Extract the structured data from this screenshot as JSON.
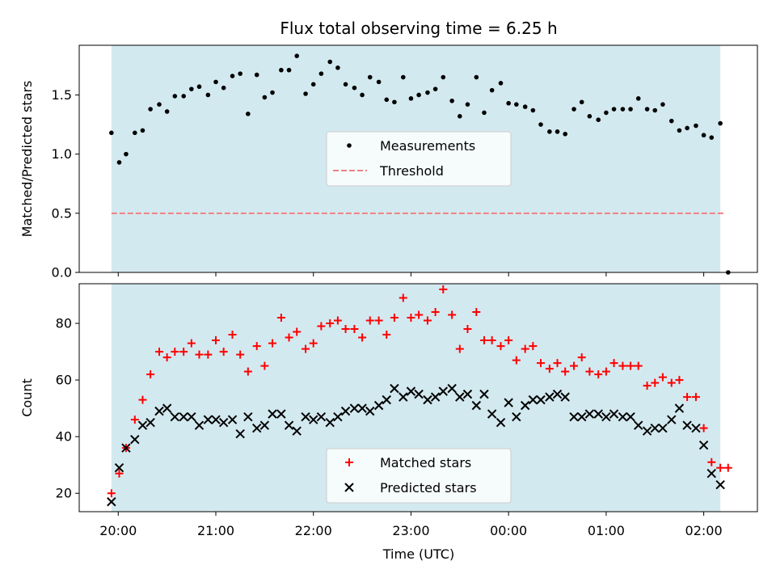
{
  "chart_data": {
    "title": "Flux total observing time = 6.25 h",
    "xlabel": "Time (UTC)",
    "x_tick_labels": [
      "20:00",
      "21:00",
      "22:00",
      "23:00",
      "00:00",
      "01:00",
      "02:00"
    ],
    "x_tick_hours": [
      20,
      21,
      22,
      23,
      24,
      25,
      26
    ],
    "xlim": [
      19.6,
      26.55
    ],
    "shaded_span": [
      19.93,
      26.17
    ],
    "shade_color": "#d3e9f0",
    "panels": [
      {
        "type": "scatter",
        "ylabel": "Matched/Predicted stars",
        "ylim": [
          0,
          1.92
        ],
        "y_ticks": [
          0.0,
          0.5,
          1.0,
          1.5
        ],
        "y_tick_labels": [
          "0.0",
          "0.5",
          "1.0",
          "1.5"
        ],
        "legend_position": "center",
        "series": [
          {
            "name": "Measurements",
            "marker": "dot",
            "color": "#000000",
            "x": [
              19.93,
              20.01,
              20.08,
              20.17,
              20.25,
              20.33,
              20.42,
              20.5,
              20.58,
              20.67,
              20.75,
              20.83,
              20.92,
              21.0,
              21.08,
              21.17,
              21.25,
              21.33,
              21.42,
              21.5,
              21.58,
              21.67,
              21.75,
              21.83,
              21.92,
              22.0,
              22.08,
              22.17,
              22.25,
              22.33,
              22.42,
              22.5,
              22.58,
              22.67,
              22.75,
              22.83,
              22.92,
              23.0,
              23.08,
              23.17,
              23.25,
              23.33,
              23.42,
              23.5,
              23.58,
              23.67,
              23.75,
              23.83,
              23.92,
              24.0,
              24.08,
              24.17,
              24.25,
              24.33,
              24.42,
              24.5,
              24.58,
              24.67,
              24.75,
              24.83,
              24.92,
              25.0,
              25.08,
              25.17,
              25.25,
              25.33,
              25.42,
              25.5,
              25.58,
              25.67,
              25.75,
              25.83,
              25.92,
              26.0,
              26.08,
              26.17,
              26.25
            ],
            "y": [
              1.18,
              0.93,
              1.0,
              1.18,
              1.2,
              1.38,
              1.42,
              1.36,
              1.49,
              1.49,
              1.55,
              1.57,
              1.5,
              1.61,
              1.56,
              1.66,
              1.68,
              1.34,
              1.67,
              1.48,
              1.52,
              1.71,
              1.71,
              1.83,
              1.51,
              1.59,
              1.68,
              1.78,
              1.73,
              1.59,
              1.56,
              1.5,
              1.65,
              1.61,
              1.46,
              1.44,
              1.65,
              1.47,
              1.5,
              1.52,
              1.55,
              1.65,
              1.45,
              1.32,
              1.42,
              1.65,
              1.35,
              1.54,
              1.6,
              1.43,
              1.42,
              1.4,
              1.37,
              1.25,
              1.19,
              1.19,
              1.17,
              1.38,
              1.44,
              1.32,
              1.29,
              1.35,
              1.38,
              1.38,
              1.38,
              1.47,
              1.38,
              1.37,
              1.42,
              1.28,
              1.2,
              1.22,
              1.24,
              1.16,
              1.14,
              1.26,
              0.0
            ]
          },
          {
            "name": "Threshold",
            "marker": "dashed-line",
            "color": "#f08080",
            "x": [
              19.93,
              26.22
            ],
            "y": [
              0.5,
              0.5
            ]
          }
        ]
      },
      {
        "type": "scatter",
        "ylabel": "Count",
        "ylim": [
          13.5,
          94
        ],
        "y_ticks": [
          20,
          40,
          60,
          80
        ],
        "y_tick_labels": [
          "20",
          "40",
          "60",
          "80"
        ],
        "legend_position": "bottom-center",
        "series": [
          {
            "name": "Matched stars",
            "marker": "plus",
            "color": "#ff0000",
            "x": [
              19.93,
              20.01,
              20.08,
              20.17,
              20.25,
              20.33,
              20.42,
              20.5,
              20.58,
              20.67,
              20.75,
              20.83,
              20.92,
              21.0,
              21.08,
              21.17,
              21.25,
              21.33,
              21.42,
              21.5,
              21.58,
              21.67,
              21.75,
              21.83,
              21.92,
              22.0,
              22.08,
              22.17,
              22.25,
              22.33,
              22.42,
              22.5,
              22.58,
              22.67,
              22.75,
              22.83,
              22.92,
              23.0,
              23.08,
              23.17,
              23.25,
              23.33,
              23.42,
              23.5,
              23.58,
              23.67,
              23.75,
              23.83,
              23.92,
              24.0,
              24.08,
              24.17,
              24.25,
              24.33,
              24.42,
              24.5,
              24.58,
              24.67,
              24.75,
              24.83,
              24.92,
              25.0,
              25.08,
              25.17,
              25.25,
              25.33,
              25.42,
              25.5,
              25.58,
              25.67,
              25.75,
              25.83,
              25.92,
              26.0,
              26.08,
              26.17,
              26.25
            ],
            "y": [
              20,
              27,
              36,
              46,
              53,
              62,
              70,
              68,
              70,
              70,
              73,
              69,
              69,
              74,
              70,
              76,
              69,
              63,
              72,
              65,
              73,
              82,
              75,
              77,
              71,
              73,
              79,
              80,
              81,
              78,
              78,
              75,
              81,
              81,
              76,
              82,
              89,
              82,
              83,
              81,
              84,
              92,
              83,
              71,
              78,
              84,
              74,
              74,
              72,
              74,
              67,
              71,
              72,
              66,
              64,
              66,
              63,
              65,
              68,
              63,
              62,
              63,
              66,
              65,
              65,
              65,
              58,
              59,
              61,
              59,
              60,
              54,
              54,
              43,
              31,
              29,
              29
            ]
          },
          {
            "name": "Predicted stars",
            "marker": "x",
            "color": "#000000",
            "x": [
              19.93,
              20.01,
              20.08,
              20.17,
              20.25,
              20.33,
              20.42,
              20.5,
              20.58,
              20.67,
              20.75,
              20.83,
              20.92,
              21.0,
              21.08,
              21.17,
              21.25,
              21.33,
              21.42,
              21.5,
              21.58,
              21.67,
              21.75,
              21.83,
              21.92,
              22.0,
              22.08,
              22.17,
              22.25,
              22.33,
              22.42,
              22.5,
              22.58,
              22.67,
              22.75,
              22.83,
              22.92,
              23.0,
              23.08,
              23.17,
              23.25,
              23.33,
              23.42,
              23.5,
              23.58,
              23.67,
              23.75,
              23.83,
              23.92,
              24.0,
              24.08,
              24.17,
              24.25,
              24.33,
              24.42,
              24.5,
              24.58,
              24.67,
              24.75,
              24.83,
              24.92,
              25.0,
              25.08,
              25.17,
              25.25,
              25.33,
              25.42,
              25.5,
              25.58,
              25.67,
              25.75,
              25.83,
              25.92,
              26.0,
              26.08,
              26.17
            ],
            "y": [
              17,
              29,
              36,
              39,
              44,
              45,
              49,
              50,
              47,
              47,
              47,
              44,
              46,
              46,
              45,
              46,
              41,
              47,
              43,
              44,
              48,
              48,
              44,
              42,
              47,
              46,
              47,
              45,
              47,
              49,
              50,
              50,
              49,
              51,
              53,
              57,
              54,
              56,
              55,
              53,
              54,
              56,
              57,
              54,
              55,
              51,
              55,
              48,
              45,
              52,
              47,
              51,
              53,
              53,
              54,
              55,
              54,
              47,
              47,
              48,
              48,
              47,
              48,
              47,
              47,
              44,
              42,
              43,
              43,
              46,
              50,
              44,
              43,
              37,
              27,
              23
            ]
          }
        ]
      }
    ]
  }
}
